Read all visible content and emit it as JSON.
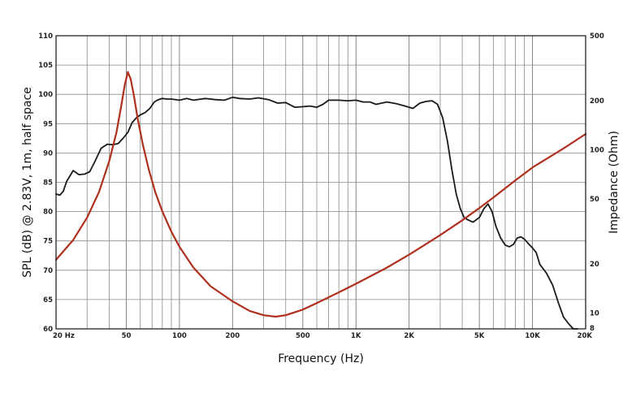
{
  "chart_data": {
    "type": "line",
    "xlabel": "Frequency (Hz)",
    "ylabel_left": "SPL (dB) @ 2.83V, 1m, half space",
    "ylabel_right": "Impedance (Ohm)",
    "x_scale": "log",
    "xlim": [
      20,
      20000
    ],
    "ylim_left": [
      60,
      110
    ],
    "ylim_right_scale": "log",
    "ylim_right": [
      8,
      500
    ],
    "grid": true,
    "x_tick_labels": [
      {
        "value": 20,
        "label": "20  Hz"
      },
      {
        "value": 50,
        "label": "50"
      },
      {
        "value": 100,
        "label": "100"
      },
      {
        "value": 200,
        "label": "200"
      },
      {
        "value": 500,
        "label": "500"
      },
      {
        "value": 1000,
        "label": "1K"
      },
      {
        "value": 2000,
        "label": "2K"
      },
      {
        "value": 5000,
        "label": "5K"
      },
      {
        "value": 10000,
        "label": "10K"
      },
      {
        "value": 20000,
        "label": "20K"
      }
    ],
    "y_left_ticks": [
      60,
      65,
      70,
      75,
      80,
      85,
      90,
      95,
      100,
      105,
      110
    ],
    "y_right_ticks": [
      {
        "value": 8,
        "label": "8"
      },
      {
        "value": 10,
        "label": "10"
      },
      {
        "value": 20,
        "label": "20"
      },
      {
        "value": 50,
        "label": "50"
      },
      {
        "value": 100,
        "label": "100"
      },
      {
        "value": 200,
        "label": "200"
      },
      {
        "value": 500,
        "label": "500"
      }
    ],
    "series": [
      {
        "axis": "left",
        "color": "#1a1a1a",
        "x": [
          20,
          21,
          22,
          23,
          25,
          27,
          29,
          31,
          33,
          36,
          39,
          42,
          45,
          48,
          51,
          54,
          57,
          60,
          64,
          68,
          72,
          76,
          80,
          85,
          90,
          100,
          110,
          120,
          140,
          160,
          180,
          200,
          220,
          250,
          280,
          320,
          360,
          400,
          450,
          500,
          550,
          600,
          650,
          700,
          800,
          900,
          1000,
          1100,
          1200,
          1300,
          1400,
          1500,
          1700,
          1900,
          2100,
          2300,
          2500,
          2700,
          2900,
          3100,
          3300,
          3500,
          3700,
          3900,
          4100,
          4300,
          4600,
          5000,
          5300,
          5600,
          5900,
          6200,
          6600,
          7000,
          7400,
          7800,
          8200,
          8600,
          9000,
          9500,
          10000,
          10500,
          11000,
          12000,
          13000,
          14000,
          15000,
          16000,
          17000,
          18000
        ],
        "values": [
          83.0,
          82.8,
          83.5,
          85.2,
          87.0,
          86.3,
          86.4,
          86.8,
          88.4,
          90.8,
          91.5,
          91.4,
          91.6,
          92.5,
          93.5,
          95.2,
          96.0,
          96.5,
          96.9,
          97.6,
          98.7,
          99.1,
          99.3,
          99.2,
          99.2,
          99.0,
          99.3,
          99.0,
          99.3,
          99.1,
          99.0,
          99.5,
          99.3,
          99.2,
          99.4,
          99.1,
          98.5,
          98.6,
          97.8,
          97.9,
          98.0,
          97.8,
          98.3,
          99.0,
          99.0,
          98.9,
          99.0,
          98.7,
          98.7,
          98.3,
          98.5,
          98.7,
          98.4,
          98.0,
          97.6,
          98.5,
          98.8,
          98.9,
          98.3,
          96.0,
          92.0,
          87.0,
          83.0,
          80.5,
          79.0,
          78.6,
          78.2,
          79.0,
          80.5,
          81.3,
          80.0,
          77.5,
          75.5,
          74.3,
          74.0,
          74.4,
          75.5,
          75.7,
          75.3,
          74.5,
          73.8,
          73.0,
          71.0,
          69.5,
          67.5,
          64.5,
          62.0,
          60.9,
          60.0,
          60.0
        ]
      },
      {
        "axis": "right",
        "color": "#b0301e",
        "x": [
          20,
          25,
          30,
          35,
          40,
          44,
          47,
          49,
          51,
          53,
          55,
          58,
          62,
          67,
          73,
          80,
          90,
          100,
          120,
          150,
          200,
          250,
          300,
          350,
          400,
          500,
          600,
          800,
          1000,
          1500,
          2000,
          3000,
          4000,
          5000,
          6000,
          8000,
          10000,
          15000,
          20000
        ],
        "values": [
          21.2,
          28.0,
          38.5,
          55.0,
          85.0,
          128.0,
          190.0,
          250.0,
          300.0,
          270.0,
          220.0,
          155.0,
          108.0,
          76.0,
          55.0,
          42.0,
          31.5,
          25.5,
          19.0,
          14.6,
          11.8,
          10.3,
          9.7,
          9.5,
          9.7,
          10.5,
          11.5,
          13.4,
          15.1,
          19.0,
          22.8,
          30.0,
          37.0,
          44.0,
          51.0,
          65.0,
          78.0,
          102.0,
          125.0
        ]
      }
    ]
  }
}
